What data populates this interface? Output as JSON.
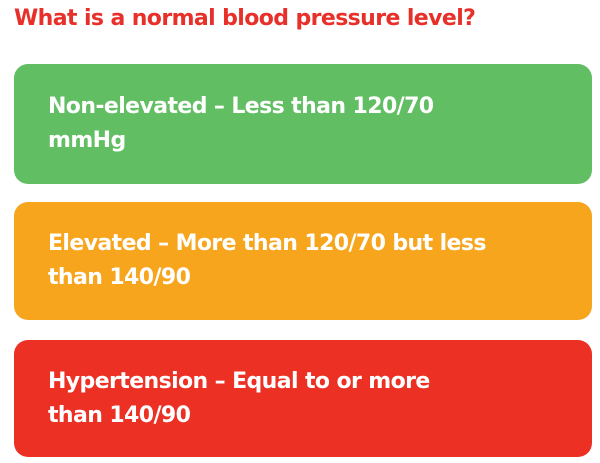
{
  "title": {
    "text": "What is a normal blood pressure level?",
    "color": "#e8302a"
  },
  "cards": [
    {
      "text": "Non-elevated – Less than 120/70 mmHg",
      "color": "#61be62"
    },
    {
      "text": "Elevated – More than 120/70 but less than 140/90",
      "color": "#f6a51d"
    },
    {
      "text": "Hypertension – Equal to or more than 140/90",
      "color": "#ec3024"
    }
  ]
}
